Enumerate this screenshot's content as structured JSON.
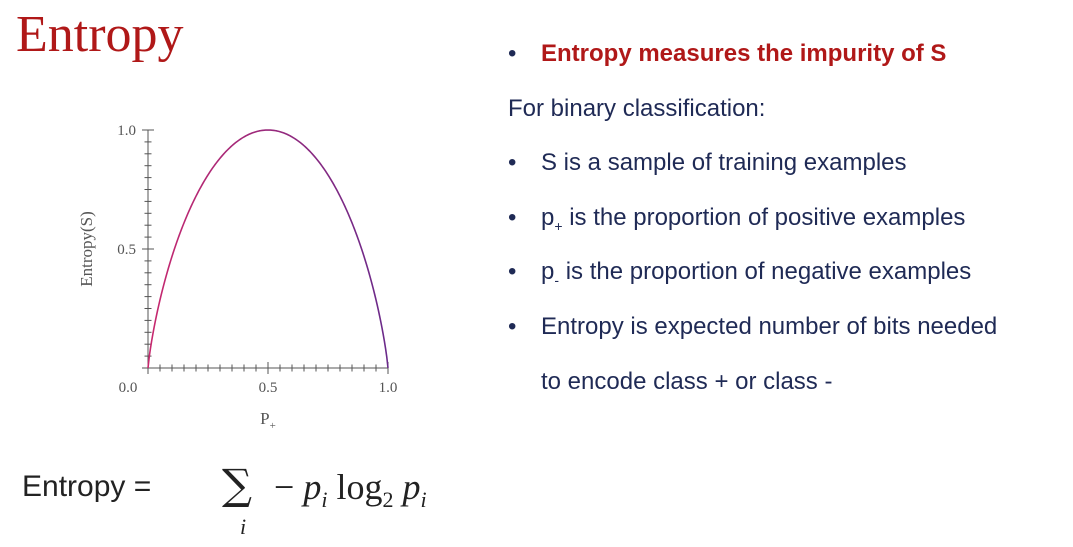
{
  "slide": {
    "title": "Entropy"
  },
  "bullets": {
    "headline": "Entropy measures the impurity of S",
    "intro": "For binary classification:",
    "item1": "S is a sample of training examples",
    "item2_sym": "p",
    "item2_sub": "+",
    "item2_text": " is the proportion of positive examples",
    "item3_sym": "p",
    "item3_sub": "-",
    "item3_text": " is the proportion of negative examples",
    "item4_line1": "Entropy is expected number of bits needed",
    "item4_line2": "to encode class + or class -",
    "dot": "•"
  },
  "formula": {
    "label": "Entropy =",
    "sigma": "∑",
    "minus": "−",
    "p": "p",
    "i": "i",
    "log": "log",
    "base": "2",
    "index": "i"
  },
  "chart_data": {
    "type": "line",
    "xlabel": "P",
    "xlabel_sub": "+",
    "ylabel": "Entropy(S)",
    "xlim": [
      0.0,
      1.0
    ],
    "ylim": [
      0.0,
      1.0
    ],
    "x_ticks": [
      "0.0",
      "0.5",
      "1.0"
    ],
    "y_ticks": [
      "1.0",
      "0.5"
    ],
    "origin_label": "0.0",
    "series": [
      {
        "x": [
          0.0,
          0.05,
          0.1,
          0.2,
          0.3,
          0.4,
          0.5,
          0.6,
          0.7,
          0.8,
          0.9,
          0.95,
          1.0
        ],
        "y": [
          0.0,
          0.29,
          0.47,
          0.72,
          0.88,
          0.97,
          1.0,
          0.97,
          0.88,
          0.72,
          0.47,
          0.29,
          0.0
        ]
      }
    ],
    "line_color_start": "#c8286e",
    "line_color_end": "#6a2a8a",
    "grid": false
  }
}
